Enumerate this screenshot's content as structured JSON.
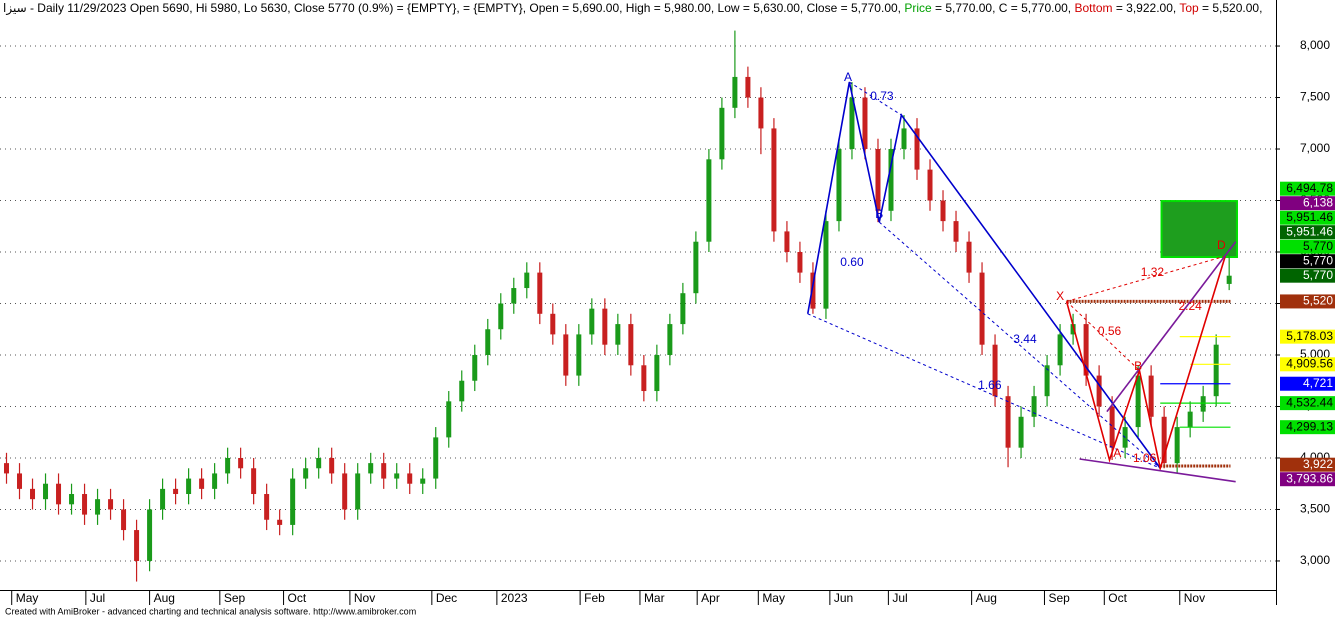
{
  "chart_data": {
    "type": "candlestick",
    "title_segments": [
      {
        "text": "سيزا - Daily 11/29/2023 Open 5690, Hi 5980, Lo 5630, Close 5770 (0.9%)   = {EMPTY},   = {EMPTY}, Open = 5,690.00, High = 5,980.00, Low = 5,630.00, Close = 5,770.00, ",
        "color": "#000000"
      },
      {
        "text": "Price",
        "color": "#00a000"
      },
      {
        "text": " = 5,770.00, C = 5,770.00, ",
        "color": "#000000"
      },
      {
        "text": "Bottom",
        "color": "#d00000"
      },
      {
        "text": " = 3,922.00, ",
        "color": "#000000"
      },
      {
        "text": "Top",
        "color": "#d00000"
      },
      {
        "text": " = 5,520.00, ",
        "color": "#000000"
      }
    ],
    "footer": "Created with AmiBroker - advanced charting and technical analysis software. http://www.amibroker.com",
    "up_color": "#1a9a1a",
    "down_color": "#c82020",
    "open": [
      3950,
      3850,
      3700,
      3600,
      3750,
      3550,
      3650,
      3450,
      3600,
      3500,
      3300,
      3000,
      3500,
      3700,
      3650,
      3800,
      3700,
      3850,
      4000,
      3900,
      3650,
      3400,
      3350,
      3800,
      3900,
      4000,
      3850,
      3500,
      3850,
      3950,
      3800,
      3850,
      3750,
      3800,
      4200,
      4550,
      4750,
      5000,
      5250,
      5500,
      5650,
      5800,
      5400,
      5200,
      4800,
      5200,
      5450,
      5100,
      5300,
      4900,
      4650,
      5000,
      5300,
      5600,
      6100,
      6900,
      7400,
      7700,
      7500,
      7200,
      6200,
      6000,
      5800,
      5450,
      6300,
      7000,
      7500,
      7000,
      6400,
      7000,
      7200,
      6800,
      6500,
      6300,
      6100,
      5800,
      5100,
      4600,
      4100,
      4400,
      4600,
      4900,
      5200,
      5300,
      4800,
      4500,
      4100,
      4300,
      4800,
      4400,
      3950,
      4300,
      4450,
      4600,
      5690
    ],
    "high": [
      4050,
      3950,
      3800,
      3850,
      3850,
      3750,
      3750,
      3700,
      3700,
      3600,
      3400,
      3600,
      3800,
      3800,
      3900,
      3900,
      3950,
      4100,
      4100,
      4000,
      3750,
      3500,
      3900,
      4000,
      4100,
      4100,
      3950,
      3950,
      4050,
      4050,
      3950,
      3950,
      3900,
      4300,
      4650,
      4850,
      5100,
      5350,
      5600,
      5750,
      5900,
      5900,
      5500,
      5300,
      5300,
      5550,
      5550,
      5400,
      5400,
      5000,
      5100,
      5400,
      5700,
      6200,
      7000,
      7500,
      8150,
      7800,
      7600,
      7300,
      6300,
      6100,
      5900,
      6400,
      7100,
      7650,
      7600,
      7100,
      7100,
      7330,
      7300,
      6900,
      6600,
      6400,
      6200,
      5900,
      5200,
      4700,
      4500,
      4700,
      5000,
      5300,
      5400,
      5400,
      4900,
      4600,
      4400,
      4900,
      4900,
      4500,
      4400,
      4550,
      4700,
      5200,
      5980
    ],
    "low": [
      3750,
      3600,
      3500,
      3500,
      3450,
      3450,
      3350,
      3350,
      3400,
      3200,
      2800,
      2900,
      3400,
      3550,
      3550,
      3600,
      3600,
      3750,
      3800,
      3550,
      3300,
      3250,
      3250,
      3700,
      3800,
      3750,
      3400,
      3400,
      3750,
      3700,
      3700,
      3650,
      3650,
      3700,
      4100,
      4450,
      4650,
      4900,
      5150,
      5400,
      5550,
      5300,
      5100,
      4700,
      4700,
      5100,
      5000,
      5000,
      4800,
      4550,
      4550,
      4900,
      5200,
      5500,
      6000,
      6800,
      7300,
      7400,
      6950,
      6100,
      5900,
      5700,
      5400,
      5350,
      6200,
      6900,
      6900,
      6290,
      6300,
      6900,
      6700,
      6400,
      6200,
      6000,
      5700,
      5000,
      4500,
      3910,
      4000,
      4300,
      4500,
      4800,
      5100,
      4700,
      4400,
      3980,
      4000,
      4200,
      4300,
      3900,
      3850,
      4200,
      4350,
      4500,
      5630
    ],
    "close": [
      3850,
      3700,
      3600,
      3750,
      3550,
      3650,
      3450,
      3600,
      3500,
      3300,
      3000,
      3500,
      3700,
      3650,
      3800,
      3700,
      3850,
      4000,
      3900,
      3650,
      3400,
      3350,
      3800,
      3900,
      4000,
      3850,
      3500,
      3850,
      3950,
      3800,
      3850,
      3750,
      3800,
      4200,
      4550,
      4750,
      5000,
      5250,
      5500,
      5650,
      5800,
      5400,
      5200,
      4800,
      5200,
      5450,
      5100,
      5300,
      4900,
      4650,
      5000,
      5300,
      5600,
      6100,
      6900,
      7400,
      7700,
      7500,
      7200,
      6200,
      6000,
      5800,
      5450,
      6300,
      7000,
      7500,
      7000,
      6400,
      7000,
      7200,
      6800,
      6500,
      6300,
      6100,
      5800,
      5100,
      4600,
      4100,
      4400,
      4600,
      4900,
      5200,
      5300,
      4800,
      4500,
      4100,
      4300,
      4800,
      4400,
      3950,
      4300,
      4450,
      4600,
      5100,
      5770
    ],
    "xlim": [
      -0.5,
      97.6
    ],
    "xticks": [
      {
        "value": 0.4,
        "label": "May"
      },
      {
        "value": 6.1,
        "label": "Jul"
      },
      {
        "value": 11.0,
        "label": "Aug"
      },
      {
        "value": 16.4,
        "label": "Sep"
      },
      {
        "value": 21.3,
        "label": "Oct"
      },
      {
        "value": 26.4,
        "label": "Nov"
      },
      {
        "value": 32.7,
        "label": "Dec"
      },
      {
        "value": 37.7,
        "label": "2023"
      },
      {
        "value": 44.1,
        "label": "Feb"
      },
      {
        "value": 48.7,
        "label": "Mar"
      },
      {
        "value": 53.1,
        "label": "Apr"
      },
      {
        "value": 57.8,
        "label": "May"
      },
      {
        "value": 63.3,
        "label": "Jun"
      },
      {
        "value": 67.8,
        "label": "Jul"
      },
      {
        "value": 74.2,
        "label": "Aug"
      },
      {
        "value": 79.8,
        "label": "Sep"
      },
      {
        "value": 84.4,
        "label": "Oct"
      },
      {
        "value": 90.2,
        "label": "Nov"
      }
    ],
    "ylim": [
      2718,
      8447
    ],
    "yticks": [
      {
        "value": 3000,
        "label": "3,000"
      },
      {
        "value": 3500,
        "label": "3,500"
      },
      {
        "value": 4000,
        "label": "4,000"
      },
      {
        "value": 4500,
        "label": "4,500"
      },
      {
        "value": 5000,
        "label": "5,000"
      },
      {
        "value": 5500,
        "label": "5,500"
      },
      {
        "value": 6000,
        "label": "6,000"
      },
      {
        "value": 6500,
        "label": "6,500"
      },
      {
        "value": 7000,
        "label": "7,000"
      },
      {
        "value": 7500,
        "label": "7,500"
      },
      {
        "value": 8000,
        "label": "8,000"
      }
    ],
    "grid": true,
    "zone": {
      "from": 88.8,
      "to": 94.6,
      "low": 5951.46,
      "high": 6494.78,
      "color": "#1e9e1e"
    },
    "overlays": [
      {
        "color": "#0000cc",
        "dash": false,
        "points": [
          [
            61.6,
            5400
          ],
          [
            64.8,
            7650
          ],
          [
            67.1,
            6290
          ],
          [
            68.8,
            7330
          ],
          [
            88.7,
            3900
          ]
        ]
      },
      {
        "color": "#0000cc",
        "dash": true,
        "points": [
          [
            64.8,
            7650
          ],
          [
            68.8,
            7330
          ]
        ]
      },
      {
        "color": "#0000cc",
        "dash": true,
        "points": [
          [
            67.1,
            6290
          ],
          [
            88.7,
            3900
          ]
        ]
      },
      {
        "color": "#0000cc",
        "dash": true,
        "points": [
          [
            61.6,
            5400
          ],
          [
            88.7,
            3900
          ]
        ]
      },
      {
        "color": "#e00000",
        "dash": false,
        "points": [
          [
            81.5,
            5520
          ],
          [
            84.8,
            3980
          ],
          [
            87.1,
            4850
          ],
          [
            88.7,
            3900
          ],
          [
            93.7,
            5960
          ]
        ]
      },
      {
        "color": "#e00000",
        "dash": true,
        "points": [
          [
            81.5,
            5520
          ],
          [
            93.7,
            5960
          ]
        ]
      },
      {
        "color": "#e00000",
        "dash": true,
        "points": [
          [
            81.5,
            5520
          ],
          [
            87.1,
            4850
          ]
        ]
      },
      {
        "color": "#7a1a9a",
        "dash": false,
        "points": [
          [
            84.6,
            4450
          ],
          [
            94.5,
            6100
          ]
        ]
      },
      {
        "color": "#7a1a9a",
        "dash": false,
        "points": [
          [
            82.5,
            3990
          ],
          [
            94.5,
            3770
          ]
        ]
      }
    ],
    "annotations": [
      {
        "text": "A",
        "x": 64.7,
        "y": 7690,
        "color": "#0000cc"
      },
      {
        "text": "0.73",
        "x": 67.3,
        "y": 7505,
        "color": "#0000cc"
      },
      {
        "text": "B",
        "x": 67.1,
        "y": 6360,
        "color": "#0000cc"
      },
      {
        "text": "0.60",
        "x": 65.0,
        "y": 5894,
        "color": "#0000cc"
      },
      {
        "text": "3.44",
        "x": 78.3,
        "y": 5146,
        "color": "#0000cc"
      },
      {
        "text": "1.66",
        "x": 75.6,
        "y": 4700,
        "color": "#0000cc"
      },
      {
        "text": "X",
        "x": 81.0,
        "y": 5564,
        "color": "#e00000"
      },
      {
        "text": "1.32",
        "x": 88.1,
        "y": 5797,
        "color": "#e00000"
      },
      {
        "text": "0.56",
        "x": 84.8,
        "y": 5224,
        "color": "#e00000"
      },
      {
        "text": "2.24",
        "x": 91.0,
        "y": 5466,
        "color": "#e00000"
      },
      {
        "text": "B",
        "x": 87.0,
        "y": 4884,
        "color": "#e00000"
      },
      {
        "text": "A",
        "x": 85.4,
        "y": 4039,
        "color": "#e00000"
      },
      {
        "text": "1.06",
        "x": 87.5,
        "y": 3990,
        "color": "#e00000"
      },
      {
        "text": "D",
        "x": 93.4,
        "y": 6059,
        "color": "#e00000"
      }
    ],
    "levels": [
      {
        "value": 6494.78,
        "label": "6,494.78",
        "color": "#00e000",
        "text_color": "#000000"
      },
      {
        "value": 6138,
        "label": "6,138",
        "color": "#800080",
        "text_color": "#ffffff"
      },
      {
        "value": 5951.46,
        "label": "5,951.46",
        "color": "#00e000",
        "text_color": "#000000"
      },
      {
        "value": 5951.46,
        "label": "5,951.46",
        "color": "#006400",
        "text_color": "#ffffff"
      },
      {
        "value": 5770,
        "label": "5,770",
        "color": "#00e000",
        "text_color": "#000000"
      },
      {
        "value": 5770,
        "label": "5,770",
        "color": "#000000",
        "text_color": "#ffffff"
      },
      {
        "value": 5770,
        "label": "5,770",
        "color": "#006400",
        "text_color": "#ffffff"
      },
      {
        "value": 5520,
        "label": "5,520",
        "color": "#a0300c",
        "text_color": "#ffffff",
        "from": 81.5
      },
      {
        "value": 5178.03,
        "label": "5,178.03",
        "color": "#ffff00",
        "text_color": "#000000",
        "from": 90.2
      },
      {
        "value": 4909.56,
        "label": "4,909.56",
        "color": "#ffff00",
        "text_color": "#000000",
        "from": 91.0
      },
      {
        "value": 4721,
        "label": "4,721",
        "color": "#0000ff",
        "text_color": "#ffffff",
        "from": 88.7
      },
      {
        "value": 4532.44,
        "label": "4,532.44",
        "color": "#00e000",
        "text_color": "#000000",
        "from": 88.7
      },
      {
        "value": 4299.13,
        "label": "4,299.13",
        "color": "#00e000",
        "text_color": "#000000",
        "from": 90.2
      },
      {
        "value": 3922,
        "label": "3,922",
        "color": "#a0300c",
        "text_color": "#ffffff",
        "from": 88.7
      },
      {
        "value": 3793.86,
        "label": "3,793.86",
        "color": "#800080",
        "text_color": "#ffffff"
      }
    ]
  }
}
